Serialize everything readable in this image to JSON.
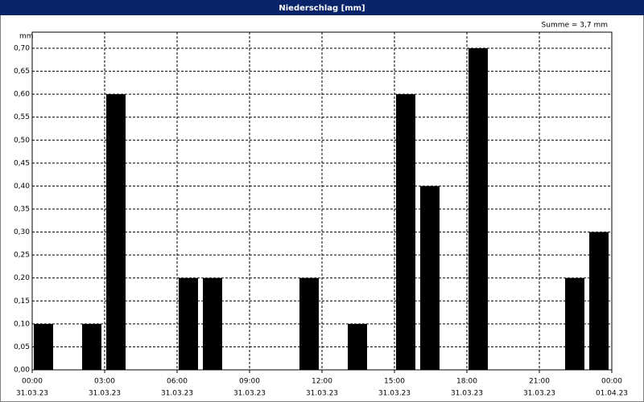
{
  "chart_data": {
    "type": "bar",
    "title": "Niederschlag [mm]",
    "y_unit": "mm",
    "annotation": "Summe = 3,7 mm",
    "x": [
      0,
      2,
      3,
      6,
      7,
      11,
      13,
      15,
      16,
      18,
      22,
      23
    ],
    "values": [
      0.1,
      0.1,
      0.6,
      0.2,
      0.2,
      0.2,
      0.1,
      0.6,
      0.4,
      0.7,
      0.2,
      0.3
    ],
    "color": "#000000",
    "xlim": [
      0,
      24
    ],
    "xticks": [
      {
        "value": 0,
        "label": "00:00"
      },
      {
        "value": 3,
        "label": "03:00"
      },
      {
        "value": 6,
        "label": "06:00"
      },
      {
        "value": 9,
        "label": "09:00"
      },
      {
        "value": 12,
        "label": "12:00"
      },
      {
        "value": 15,
        "label": "15:00"
      },
      {
        "value": 18,
        "label": "18:00"
      },
      {
        "value": 21,
        "label": "21:00"
      },
      {
        "value": 24,
        "label": "00:00"
      }
    ],
    "xtick_dates": [
      "31.03.23",
      "31.03.23",
      "31.03.23",
      "31.03.23",
      "31.03.23",
      "31.03.23",
      "31.03.23",
      "31.03.23",
      "01.04.23"
    ],
    "ylim": [
      0,
      0.735
    ],
    "yticks": [
      {
        "value": 0,
        "label": "0,00"
      },
      {
        "value": 0.05,
        "label": "0,05"
      },
      {
        "value": 0.1,
        "label": "0,10"
      },
      {
        "value": 0.15,
        "label": "0,15"
      },
      {
        "value": 0.2,
        "label": "0,20"
      },
      {
        "value": 0.25,
        "label": "0,25"
      },
      {
        "value": 0.3,
        "label": "0,30"
      },
      {
        "value": 0.35,
        "label": "0,35"
      },
      {
        "value": 0.4,
        "label": "0,40"
      },
      {
        "value": 0.45,
        "label": "0,45"
      },
      {
        "value": 0.5,
        "label": "0,50"
      },
      {
        "value": 0.55,
        "label": "0,55"
      },
      {
        "value": 0.6,
        "label": "0,60"
      },
      {
        "value": 0.65,
        "label": "0,65"
      },
      {
        "value": 0.7,
        "label": "0,70"
      }
    ],
    "grid": true
  }
}
